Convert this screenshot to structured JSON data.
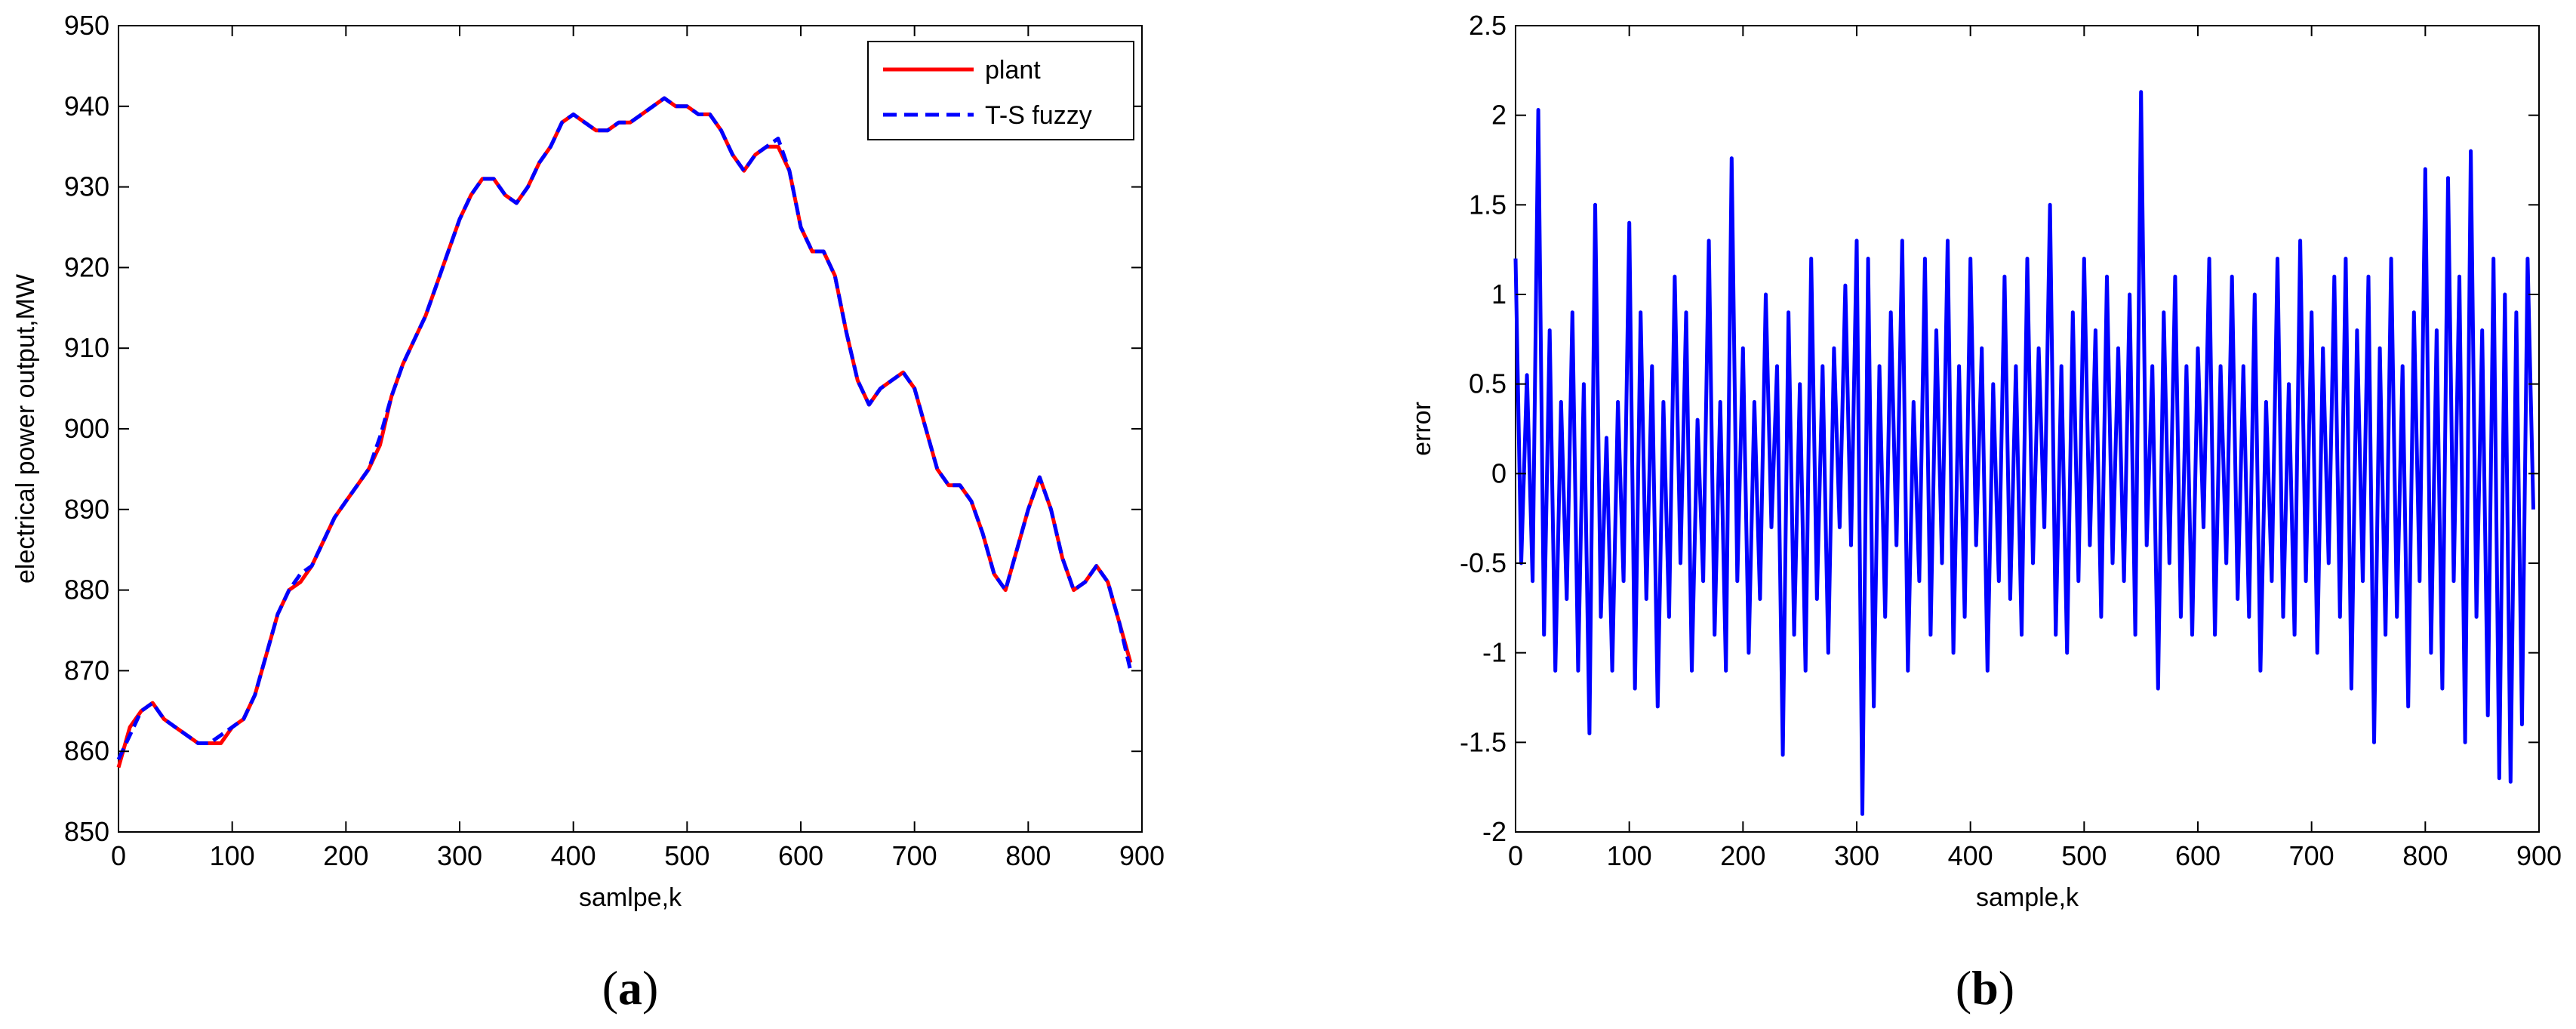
{
  "chart_data": [
    {
      "type": "line",
      "panel_label_parts": [
        "(",
        "a",
        ")"
      ],
      "xlabel": "samlpe,k",
      "ylabel": "electrical power output,MW",
      "xlim": [
        0,
        900
      ],
      "ylim": [
        850,
        950
      ],
      "xticks": [
        0,
        100,
        200,
        300,
        400,
        500,
        600,
        700,
        800,
        900
      ],
      "yticks": [
        850,
        860,
        870,
        880,
        890,
        900,
        910,
        920,
        930,
        940,
        950
      ],
      "legend_position": "top-right",
      "grid": false,
      "series": [
        {
          "name": "plant",
          "color": "#ff0000",
          "style": "solid",
          "x": [
            0,
            10,
            20,
            30,
            40,
            50,
            60,
            70,
            80,
            90,
            100,
            110,
            120,
            130,
            140,
            150,
            160,
            170,
            180,
            190,
            200,
            210,
            220,
            230,
            240,
            250,
            260,
            270,
            280,
            290,
            300,
            310,
            320,
            330,
            340,
            350,
            360,
            370,
            380,
            390,
            400,
            410,
            420,
            430,
            440,
            450,
            460,
            470,
            480,
            490,
            500,
            510,
            520,
            530,
            540,
            550,
            560,
            570,
            580,
            590,
            600,
            610,
            620,
            630,
            640,
            650,
            660,
            670,
            680,
            690,
            700,
            710,
            720,
            730,
            740,
            750,
            760,
            770,
            780,
            790,
            800,
            810,
            820,
            830,
            840,
            850,
            860,
            870,
            880,
            890
          ],
          "values": [
            858,
            863,
            865,
            866,
            864,
            863,
            862,
            861,
            861,
            861,
            863,
            864,
            867,
            872,
            877,
            880,
            881,
            883,
            886,
            889,
            891,
            893,
            895,
            898,
            904,
            908,
            911,
            914,
            918,
            922,
            926,
            929,
            931,
            931,
            929,
            928,
            930,
            933,
            935,
            938,
            939,
            938,
            937,
            937,
            938,
            938,
            939,
            940,
            941,
            940,
            940,
            939,
            939,
            937,
            934,
            932,
            934,
            935,
            935,
            932,
            925,
            922,
            922,
            919,
            912,
            906,
            903,
            905,
            906,
            907,
            905,
            900,
            895,
            893,
            893,
            891,
            887,
            882,
            880,
            885,
            890,
            894,
            890,
            884,
            880,
            881,
            883,
            881,
            876,
            871
          ]
        },
        {
          "name": "T-S fuzzy",
          "color": "#0000ff",
          "style": "dashed",
          "x": [
            0,
            10,
            20,
            30,
            40,
            50,
            60,
            70,
            80,
            90,
            100,
            110,
            120,
            130,
            140,
            150,
            160,
            170,
            180,
            190,
            200,
            210,
            220,
            230,
            240,
            250,
            260,
            270,
            280,
            290,
            300,
            310,
            320,
            330,
            340,
            350,
            360,
            370,
            380,
            390,
            400,
            410,
            420,
            430,
            440,
            450,
            460,
            470,
            480,
            490,
            500,
            510,
            520,
            530,
            540,
            550,
            560,
            570,
            580,
            590,
            600,
            610,
            620,
            630,
            640,
            650,
            660,
            670,
            680,
            690,
            700,
            710,
            720,
            730,
            740,
            750,
            760,
            770,
            780,
            790,
            800,
            810,
            820,
            830,
            840,
            850,
            860,
            870,
            880,
            890
          ],
          "values": [
            859,
            862,
            865,
            866,
            864,
            863,
            862,
            861,
            861,
            862,
            863,
            864,
            867,
            872,
            877,
            880,
            882,
            883,
            886,
            889,
            891,
            893,
            895,
            899,
            904,
            908,
            911,
            914,
            918,
            922,
            926,
            929,
            931,
            931,
            929,
            928,
            930,
            933,
            935,
            938,
            939,
            938,
            937,
            937,
            938,
            938,
            939,
            940,
            941,
            940,
            940,
            939,
            939,
            937,
            934,
            932,
            934,
            935,
            936,
            932,
            925,
            922,
            922,
            919,
            912,
            906,
            903,
            905,
            906,
            907,
            905,
            900,
            895,
            893,
            893,
            891,
            887,
            882,
            880,
            885,
            890,
            894,
            890,
            884,
            880,
            881,
            883,
            881,
            876,
            870
          ]
        }
      ]
    },
    {
      "type": "line",
      "panel_label_parts": [
        "(",
        "b",
        ")"
      ],
      "xlabel": "sample,k",
      "ylabel": "error",
      "xlim": [
        0,
        900
      ],
      "ylim": [
        -2,
        2.5
      ],
      "xticks": [
        0,
        100,
        200,
        300,
        400,
        500,
        600,
        700,
        800,
        900
      ],
      "yticks": [
        -2,
        -1.5,
        -1,
        -0.5,
        0,
        0.5,
        1,
        1.5,
        2,
        2.5
      ],
      "grid": false,
      "series": [
        {
          "color": "#0000ff",
          "style": "solid",
          "x": [
            0,
            5,
            10,
            15,
            20,
            25,
            30,
            35,
            40,
            45,
            50,
            55,
            60,
            65,
            70,
            75,
            80,
            85,
            90,
            95,
            100,
            105,
            110,
            115,
            120,
            125,
            130,
            135,
            140,
            145,
            150,
            155,
            160,
            165,
            170,
            175,
            180,
            185,
            190,
            195,
            200,
            205,
            210,
            215,
            220,
            225,
            230,
            235,
            240,
            245,
            250,
            255,
            260,
            265,
            270,
            275,
            280,
            285,
            290,
            295,
            300,
            305,
            310,
            315,
            320,
            325,
            330,
            335,
            340,
            345,
            350,
            355,
            360,
            365,
            370,
            375,
            380,
            385,
            390,
            395,
            400,
            405,
            410,
            415,
            420,
            425,
            430,
            435,
            440,
            445,
            450,
            455,
            460,
            465,
            470,
            475,
            480,
            485,
            490,
            495,
            500,
            505,
            510,
            515,
            520,
            525,
            530,
            535,
            540,
            545,
            550,
            555,
            560,
            565,
            570,
            575,
            580,
            585,
            590,
            595,
            600,
            605,
            610,
            615,
            620,
            625,
            630,
            635,
            640,
            645,
            650,
            655,
            660,
            665,
            670,
            675,
            680,
            685,
            690,
            695,
            700,
            705,
            710,
            715,
            720,
            725,
            730,
            735,
            740,
            745,
            750,
            755,
            760,
            765,
            770,
            775,
            780,
            785,
            790,
            795,
            800,
            805,
            810,
            815,
            820,
            825,
            830,
            835,
            840,
            845,
            850,
            855,
            860,
            865,
            870,
            875,
            880,
            885,
            890,
            895
          ],
          "values": [
            1.2,
            -0.5,
            0.55,
            -0.6,
            2.03,
            -0.9,
            0.8,
            -1.1,
            0.4,
            -0.7,
            0.9,
            -1.1,
            0.5,
            -1.45,
            1.5,
            -0.8,
            0.2,
            -1.1,
            0.4,
            -0.6,
            1.4,
            -1.2,
            0.9,
            -0.7,
            0.6,
            -1.3,
            0.4,
            -0.8,
            1.1,
            -0.5,
            0.9,
            -1.1,
            0.3,
            -0.6,
            1.3,
            -0.9,
            0.4,
            -1.1,
            1.76,
            -0.6,
            0.7,
            -1.0,
            0.4,
            -0.7,
            1.0,
            -0.3,
            0.6,
            -1.57,
            0.9,
            -0.9,
            0.5,
            -1.1,
            1.2,
            -0.7,
            0.6,
            -1.0,
            0.7,
            -0.3,
            1.05,
            -0.4,
            1.3,
            -1.9,
            1.2,
            -1.3,
            0.6,
            -0.8,
            0.9,
            -0.4,
            1.3,
            -1.1,
            0.4,
            -0.6,
            1.2,
            -0.9,
            0.8,
            -0.5,
            1.3,
            -1.0,
            0.6,
            -0.8,
            1.2,
            -0.4,
            0.7,
            -1.1,
            0.5,
            -0.6,
            1.1,
            -0.7,
            0.6,
            -0.9,
            1.2,
            -0.5,
            0.7,
            -0.3,
            1.5,
            -0.9,
            0.6,
            -1.0,
            0.9,
            -0.6,
            1.2,
            -0.4,
            0.8,
            -0.8,
            1.1,
            -0.5,
            0.7,
            -0.6,
            1.0,
            -0.9,
            2.13,
            -0.4,
            0.6,
            -1.2,
            0.9,
            -0.5,
            1.1,
            -0.8,
            0.6,
            -0.9,
            0.7,
            -0.3,
            1.2,
            -0.9,
            0.6,
            -0.5,
            1.1,
            -0.7,
            0.6,
            -0.8,
            1.0,
            -1.1,
            0.4,
            -0.6,
            1.2,
            -0.8,
            0.5,
            -0.9,
            1.3,
            -0.6,
            0.9,
            -1.0,
            0.7,
            -0.5,
            1.1,
            -0.8,
            1.2,
            -1.2,
            0.8,
            -0.6,
            1.1,
            -1.5,
            0.7,
            -0.9,
            1.2,
            -0.8,
            0.6,
            -1.3,
            0.9,
            -0.6,
            1.7,
            -1.0,
            0.8,
            -1.2,
            1.65,
            -0.6,
            1.1,
            -1.5,
            1.8,
            -0.8,
            0.8,
            -1.35,
            1.2,
            -1.7,
            1.0,
            -1.72,
            0.9,
            -1.4,
            1.2,
            -0.2
          ]
        }
      ]
    }
  ]
}
